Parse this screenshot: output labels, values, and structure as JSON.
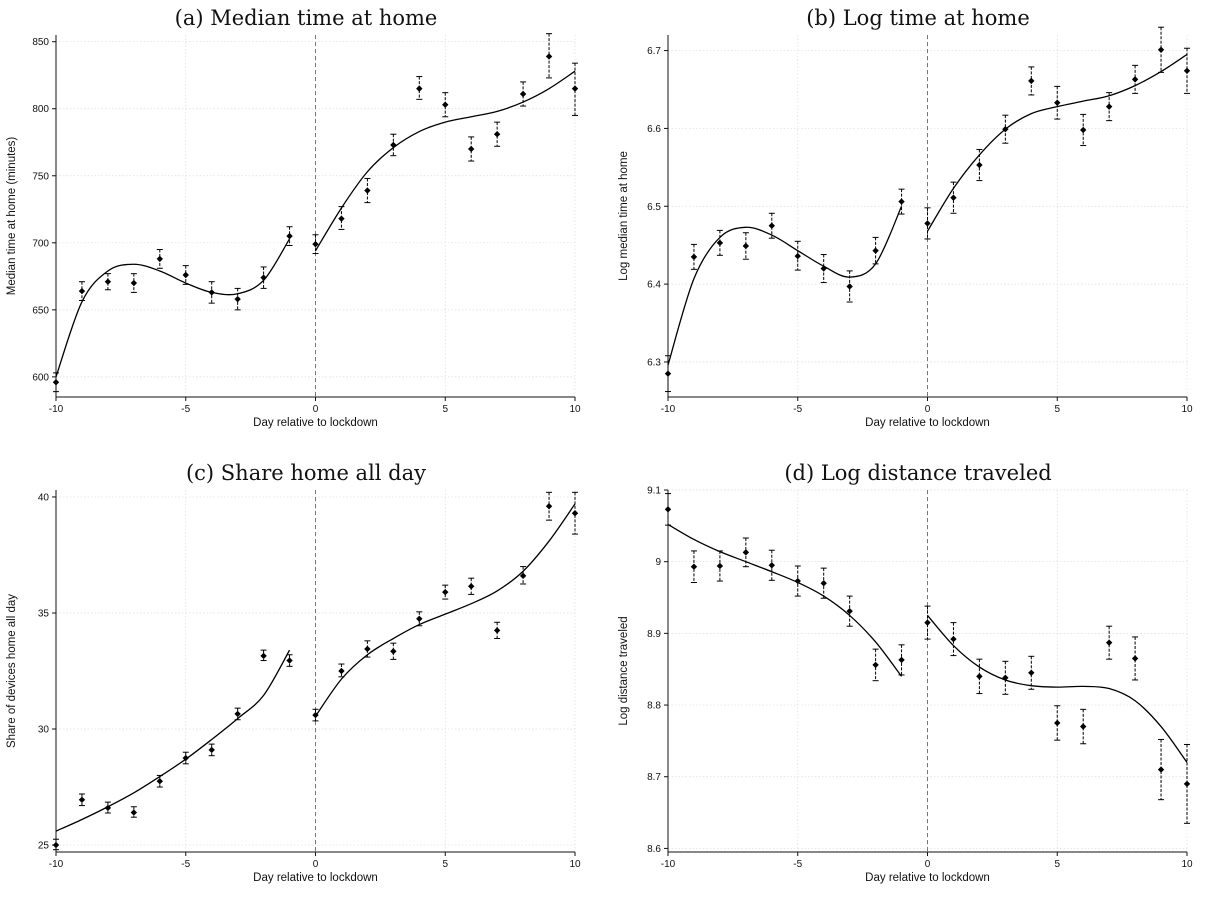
{
  "chart_data": [
    {
      "type": "scatter",
      "title": "(a) Median time at home",
      "xlabel": "Day relative to lockdown",
      "ylabel": "Median time at home (minutes)",
      "xlim": [
        -10,
        10
      ],
      "ylim": [
        585,
        855
      ],
      "xticks": [
        -10,
        -5,
        0,
        5,
        10
      ],
      "yticks": [
        600,
        650,
        700,
        750,
        800,
        850
      ],
      "grid": true,
      "vline_at": 0,
      "points": [
        {
          "x": -10,
          "y": 596,
          "lo": 589,
          "hi": 603
        },
        {
          "x": -9,
          "y": 664,
          "lo": 657,
          "hi": 671
        },
        {
          "x": -8,
          "y": 671,
          "lo": 665,
          "hi": 677
        },
        {
          "x": -7,
          "y": 670,
          "lo": 663,
          "hi": 677
        },
        {
          "x": -6,
          "y": 688,
          "lo": 681,
          "hi": 695
        },
        {
          "x": -5,
          "y": 676,
          "lo": 669,
          "hi": 683
        },
        {
          "x": -4,
          "y": 663,
          "lo": 655,
          "hi": 671
        },
        {
          "x": -3,
          "y": 658,
          "lo": 650,
          "hi": 666
        },
        {
          "x": -2,
          "y": 674,
          "lo": 666,
          "hi": 682
        },
        {
          "x": -1,
          "y": 705,
          "lo": 698,
          "hi": 712
        },
        {
          "x": 0,
          "y": 699,
          "lo": 692,
          "hi": 706
        },
        {
          "x": 1,
          "y": 718,
          "lo": 710,
          "hi": 727
        },
        {
          "x": 2,
          "y": 739,
          "lo": 730,
          "hi": 748
        },
        {
          "x": 3,
          "y": 773,
          "lo": 765,
          "hi": 781
        },
        {
          "x": 4,
          "y": 815,
          "lo": 807,
          "hi": 824
        },
        {
          "x": 5,
          "y": 803,
          "lo": 794,
          "hi": 812
        },
        {
          "x": 6,
          "y": 770,
          "lo": 761,
          "hi": 779
        },
        {
          "x": 7,
          "y": 781,
          "lo": 772,
          "hi": 790
        },
        {
          "x": 8,
          "y": 811,
          "lo": 802,
          "hi": 820
        },
        {
          "x": 9,
          "y": 839,
          "lo": 823,
          "hi": 856
        },
        {
          "x": 10,
          "y": 815,
          "lo": 795,
          "hi": 834
        }
      ],
      "fit_pre": [
        {
          "x": -10,
          "y": 600
        },
        {
          "x": -9,
          "y": 656
        },
        {
          "x": -8,
          "y": 679
        },
        {
          "x": -7,
          "y": 684
        },
        {
          "x": -6,
          "y": 679
        },
        {
          "x": -5,
          "y": 670
        },
        {
          "x": -4,
          "y": 663
        },
        {
          "x": -3,
          "y": 662
        },
        {
          "x": -2,
          "y": 672
        },
        {
          "x": -1,
          "y": 703
        }
      ],
      "fit_post": [
        {
          "x": 0,
          "y": 694
        },
        {
          "x": 1,
          "y": 726
        },
        {
          "x": 2,
          "y": 753
        },
        {
          "x": 3,
          "y": 771
        },
        {
          "x": 4,
          "y": 783
        },
        {
          "x": 5,
          "y": 790
        },
        {
          "x": 6,
          "y": 794
        },
        {
          "x": 7,
          "y": 798
        },
        {
          "x": 8,
          "y": 805
        },
        {
          "x": 9,
          "y": 815
        },
        {
          "x": 10,
          "y": 828
        }
      ]
    },
    {
      "type": "scatter",
      "title": "(b) Log time at home",
      "xlabel": "Day relative to lockdown",
      "ylabel": "Log median time at home",
      "xlim": [
        -10,
        10
      ],
      "ylim": [
        6.255,
        6.72
      ],
      "xticks": [
        -10,
        -5,
        0,
        5,
        10
      ],
      "yticks": [
        6.3,
        6.4,
        6.5,
        6.6,
        6.7
      ],
      "grid": true,
      "vline_at": 0,
      "points": [
        {
          "x": -10,
          "y": 6.285,
          "lo": 6.262,
          "hi": 6.308
        },
        {
          "x": -9,
          "y": 6.435,
          "lo": 6.419,
          "hi": 6.451
        },
        {
          "x": -8,
          "y": 6.453,
          "lo": 6.437,
          "hi": 6.469
        },
        {
          "x": -7,
          "y": 6.449,
          "lo": 6.432,
          "hi": 6.466
        },
        {
          "x": -6,
          "y": 6.475,
          "lo": 6.459,
          "hi": 6.491
        },
        {
          "x": -5,
          "y": 6.436,
          "lo": 6.418,
          "hi": 6.455
        },
        {
          "x": -4,
          "y": 6.42,
          "lo": 6.402,
          "hi": 6.438
        },
        {
          "x": -3,
          "y": 6.397,
          "lo": 6.377,
          "hi": 6.417
        },
        {
          "x": -2,
          "y": 6.443,
          "lo": 6.426,
          "hi": 6.46
        },
        {
          "x": -1,
          "y": 6.506,
          "lo": 6.49,
          "hi": 6.522
        },
        {
          "x": 0,
          "y": 6.478,
          "lo": 6.458,
          "hi": 6.498
        },
        {
          "x": 1,
          "y": 6.511,
          "lo": 6.491,
          "hi": 6.531
        },
        {
          "x": 2,
          "y": 6.553,
          "lo": 6.533,
          "hi": 6.573
        },
        {
          "x": 3,
          "y": 6.599,
          "lo": 6.581,
          "hi": 6.617
        },
        {
          "x": 4,
          "y": 6.661,
          "lo": 6.643,
          "hi": 6.679
        },
        {
          "x": 5,
          "y": 6.633,
          "lo": 6.612,
          "hi": 6.654
        },
        {
          "x": 6,
          "y": 6.598,
          "lo": 6.578,
          "hi": 6.618
        },
        {
          "x": 7,
          "y": 6.628,
          "lo": 6.61,
          "hi": 6.646
        },
        {
          "x": 8,
          "y": 6.663,
          "lo": 6.645,
          "hi": 6.681
        },
        {
          "x": 9,
          "y": 6.701,
          "lo": 6.672,
          "hi": 6.73
        },
        {
          "x": 10,
          "y": 6.674,
          "lo": 6.645,
          "hi": 6.703
        }
      ],
      "fit_pre": [
        {
          "x": -10,
          "y": 6.296
        },
        {
          "x": -9,
          "y": 6.407
        },
        {
          "x": -8,
          "y": 6.46
        },
        {
          "x": -7,
          "y": 6.473
        },
        {
          "x": -6,
          "y": 6.463
        },
        {
          "x": -5,
          "y": 6.443
        },
        {
          "x": -4,
          "y": 6.423
        },
        {
          "x": -3,
          "y": 6.409
        },
        {
          "x": -2,
          "y": 6.426
        },
        {
          "x": -1,
          "y": 6.5
        }
      ],
      "fit_post": [
        {
          "x": 0,
          "y": 6.468
        },
        {
          "x": 1,
          "y": 6.523
        },
        {
          "x": 2,
          "y": 6.566
        },
        {
          "x": 3,
          "y": 6.599
        },
        {
          "x": 4,
          "y": 6.619
        },
        {
          "x": 5,
          "y": 6.628
        },
        {
          "x": 6,
          "y": 6.635
        },
        {
          "x": 7,
          "y": 6.642
        },
        {
          "x": 8,
          "y": 6.655
        },
        {
          "x": 9,
          "y": 6.673
        },
        {
          "x": 10,
          "y": 6.695
        }
      ]
    },
    {
      "type": "scatter",
      "title": "(c) Share home all day",
      "xlabel": "Day relative to lockdown",
      "ylabel": "Share of devices home all day",
      "xlim": [
        -10,
        10
      ],
      "ylim": [
        24.7,
        40.3
      ],
      "xticks": [
        -10,
        -5,
        0,
        5,
        10
      ],
      "yticks": [
        25,
        30,
        35,
        40
      ],
      "grid": true,
      "vline_at": 0,
      "points": [
        {
          "x": -10,
          "y": 25.0,
          "lo": 24.8,
          "hi": 25.25
        },
        {
          "x": -9,
          "y": 26.95,
          "lo": 26.7,
          "hi": 27.2
        },
        {
          "x": -8,
          "y": 26.6,
          "lo": 26.38,
          "hi": 26.85
        },
        {
          "x": -7,
          "y": 26.4,
          "lo": 26.2,
          "hi": 26.65
        },
        {
          "x": -6,
          "y": 27.75,
          "lo": 27.5,
          "hi": 28.0
        },
        {
          "x": -5,
          "y": 28.75,
          "lo": 28.5,
          "hi": 29.0
        },
        {
          "x": -4,
          "y": 29.1,
          "lo": 28.85,
          "hi": 29.35
        },
        {
          "x": -3,
          "y": 30.65,
          "lo": 30.4,
          "hi": 30.9
        },
        {
          "x": -2,
          "y": 33.15,
          "lo": 32.95,
          "hi": 33.4
        },
        {
          "x": -1,
          "y": 32.95,
          "lo": 32.7,
          "hi": 33.2
        },
        {
          "x": 0,
          "y": 30.6,
          "lo": 30.35,
          "hi": 30.85
        },
        {
          "x": 1,
          "y": 32.5,
          "lo": 32.25,
          "hi": 32.8
        },
        {
          "x": 2,
          "y": 33.45,
          "lo": 33.1,
          "hi": 33.8
        },
        {
          "x": 3,
          "y": 33.35,
          "lo": 33.0,
          "hi": 33.7
        },
        {
          "x": 4,
          "y": 34.75,
          "lo": 34.45,
          "hi": 35.05
        },
        {
          "x": 5,
          "y": 35.9,
          "lo": 35.6,
          "hi": 36.2
        },
        {
          "x": 6,
          "y": 36.15,
          "lo": 35.8,
          "hi": 36.5
        },
        {
          "x": 7,
          "y": 34.25,
          "lo": 33.9,
          "hi": 34.6
        },
        {
          "x": 8,
          "y": 36.6,
          "lo": 36.25,
          "hi": 37.0
        },
        {
          "x": 9,
          "y": 39.6,
          "lo": 39.0,
          "hi": 40.2
        },
        {
          "x": 10,
          "y": 39.3,
          "lo": 38.4,
          "hi": 40.2
        }
      ],
      "fit_pre": [
        {
          "x": -10,
          "y": 25.6
        },
        {
          "x": -9,
          "y": 26.1
        },
        {
          "x": -8,
          "y": 26.65
        },
        {
          "x": -7,
          "y": 27.25
        },
        {
          "x": -6,
          "y": 27.95
        },
        {
          "x": -5,
          "y": 28.7
        },
        {
          "x": -4,
          "y": 29.55
        },
        {
          "x": -3,
          "y": 30.45
        },
        {
          "x": -2,
          "y": 31.45
        },
        {
          "x": -1,
          "y": 33.4
        }
      ],
      "fit_post": [
        {
          "x": 0,
          "y": 30.55
        },
        {
          "x": 1,
          "y": 32.15
        },
        {
          "x": 2,
          "y": 33.2
        },
        {
          "x": 3,
          "y": 33.9
        },
        {
          "x": 4,
          "y": 34.5
        },
        {
          "x": 5,
          "y": 34.95
        },
        {
          "x": 6,
          "y": 35.4
        },
        {
          "x": 7,
          "y": 35.95
        },
        {
          "x": 8,
          "y": 36.8
        },
        {
          "x": 9,
          "y": 38.1
        },
        {
          "x": 10,
          "y": 39.7
        }
      ]
    },
    {
      "type": "scatter",
      "title": "(d) Log distance traveled",
      "xlabel": "Day relative to lockdown",
      "ylabel": "Log distance traveled",
      "xlim": [
        -10,
        10
      ],
      "ylim": [
        8.595,
        9.1
      ],
      "xticks": [
        -10,
        -5,
        0,
        5,
        10
      ],
      "yticks": [
        8.6,
        8.7,
        8.8,
        8.9,
        9,
        9.1
      ],
      "grid": true,
      "vline_at": 0,
      "points": [
        {
          "x": -10,
          "y": 9.073,
          "lo": 9.051,
          "hi": 9.095
        },
        {
          "x": -9,
          "y": 8.993,
          "lo": 8.971,
          "hi": 9.015
        },
        {
          "x": -8,
          "y": 8.994,
          "lo": 8.973,
          "hi": 9.015
        },
        {
          "x": -7,
          "y": 9.013,
          "lo": 8.993,
          "hi": 9.033
        },
        {
          "x": -6,
          "y": 8.995,
          "lo": 8.974,
          "hi": 9.016
        },
        {
          "x": -5,
          "y": 8.973,
          "lo": 8.952,
          "hi": 8.994
        },
        {
          "x": -4,
          "y": 8.97,
          "lo": 8.949,
          "hi": 8.991
        },
        {
          "x": -3,
          "y": 8.931,
          "lo": 8.91,
          "hi": 8.952
        },
        {
          "x": -2,
          "y": 8.856,
          "lo": 8.834,
          "hi": 8.878
        },
        {
          "x": -1,
          "y": 8.863,
          "lo": 8.842,
          "hi": 8.884
        },
        {
          "x": 0,
          "y": 8.915,
          "lo": 8.892,
          "hi": 8.938
        },
        {
          "x": 1,
          "y": 8.892,
          "lo": 8.869,
          "hi": 8.915
        },
        {
          "x": 2,
          "y": 8.84,
          "lo": 8.816,
          "hi": 8.864
        },
        {
          "x": 3,
          "y": 8.838,
          "lo": 8.815,
          "hi": 8.861
        },
        {
          "x": 4,
          "y": 8.845,
          "lo": 8.822,
          "hi": 8.868
        },
        {
          "x": 5,
          "y": 8.775,
          "lo": 8.751,
          "hi": 8.799
        },
        {
          "x": 6,
          "y": 8.77,
          "lo": 8.746,
          "hi": 8.794
        },
        {
          "x": 7,
          "y": 8.887,
          "lo": 8.864,
          "hi": 8.91
        },
        {
          "x": 8,
          "y": 8.865,
          "lo": 8.835,
          "hi": 8.895
        },
        {
          "x": 9,
          "y": 8.71,
          "lo": 8.668,
          "hi": 8.752
        },
        {
          "x": 10,
          "y": 8.69,
          "lo": 8.635,
          "hi": 8.745
        }
      ],
      "fit_pre": [
        {
          "x": -10,
          "y": 9.052
        },
        {
          "x": -9,
          "y": 9.031
        },
        {
          "x": -8,
          "y": 9.014
        },
        {
          "x": -7,
          "y": 9.0
        },
        {
          "x": -6,
          "y": 8.986
        },
        {
          "x": -5,
          "y": 8.971
        },
        {
          "x": -4,
          "y": 8.952
        },
        {
          "x": -3,
          "y": 8.925
        },
        {
          "x": -2,
          "y": 8.888
        },
        {
          "x": -1,
          "y": 8.84
        }
      ],
      "fit_post": [
        {
          "x": 0,
          "y": 8.925
        },
        {
          "x": 1,
          "y": 8.883
        },
        {
          "x": 2,
          "y": 8.853
        },
        {
          "x": 3,
          "y": 8.835
        },
        {
          "x": 4,
          "y": 8.827
        },
        {
          "x": 5,
          "y": 8.825
        },
        {
          "x": 6,
          "y": 8.826
        },
        {
          "x": 7,
          "y": 8.823
        },
        {
          "x": 8,
          "y": 8.806
        },
        {
          "x": 9,
          "y": 8.77
        },
        {
          "x": 10,
          "y": 8.72
        }
      ]
    }
  ]
}
